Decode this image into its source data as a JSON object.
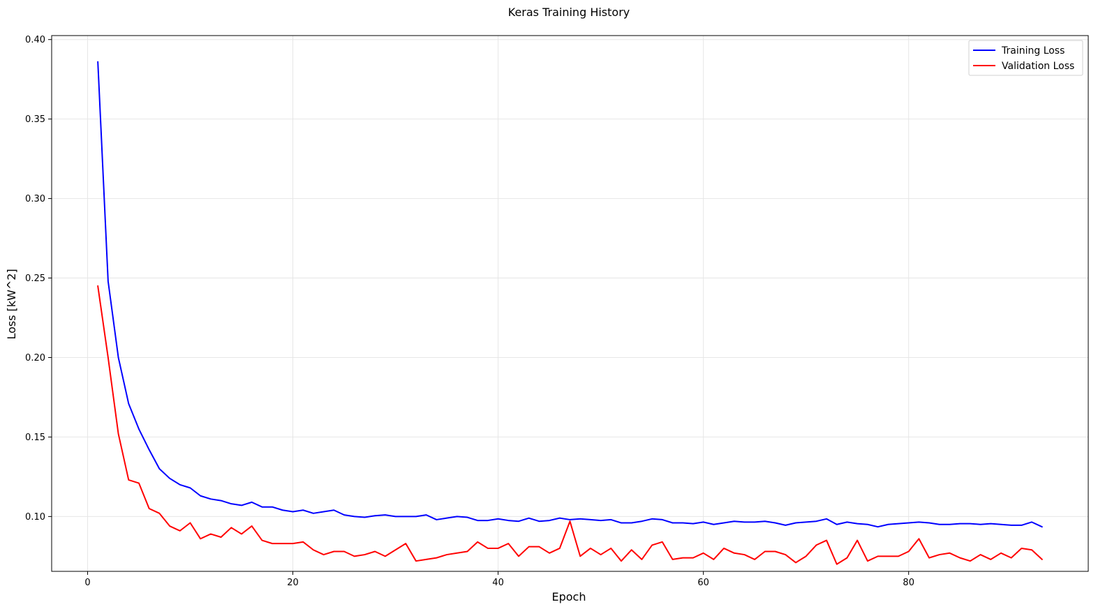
{
  "chart_data": {
    "type": "line",
    "title": "Keras Training History",
    "xlabel": "Epoch",
    "ylabel": "Loss [kW^2]",
    "xlim": [
      -3.5,
      97.5
    ],
    "ylim": [
      0.0655,
      0.4025
    ],
    "xticks": [
      0,
      20,
      40,
      60,
      80
    ],
    "yticks": [
      0.1,
      0.15,
      0.2,
      0.25,
      0.3,
      0.35,
      0.4
    ],
    "ytick_labels": [
      "0.10",
      "0.15",
      "0.20",
      "0.25",
      "0.30",
      "0.35",
      "0.40"
    ],
    "grid": true,
    "legend_position": "top-right",
    "x": [
      1,
      2,
      3,
      4,
      5,
      6,
      7,
      8,
      9,
      10,
      11,
      12,
      13,
      14,
      15,
      16,
      17,
      18,
      19,
      20,
      21,
      22,
      23,
      24,
      25,
      26,
      27,
      28,
      29,
      30,
      31,
      32,
      33,
      34,
      35,
      36,
      37,
      38,
      39,
      40,
      41,
      42,
      43,
      44,
      45,
      46,
      47,
      48,
      49,
      50,
      51,
      52,
      53,
      54,
      55,
      56,
      57,
      58,
      59,
      60,
      61,
      62,
      63,
      64,
      65,
      66,
      67,
      68,
      69,
      70,
      71,
      72,
      73,
      74,
      75,
      76,
      77,
      78,
      79,
      80,
      81,
      82,
      83,
      84,
      85,
      86,
      87,
      88,
      89,
      90,
      91,
      92,
      93
    ],
    "series": [
      {
        "name": "Training Loss",
        "color": "#0000ff",
        "values": [
          0.386,
          0.248,
          0.2,
          0.171,
          0.155,
          0.142,
          0.13,
          0.124,
          0.12,
          0.118,
          0.113,
          0.111,
          0.11,
          0.108,
          0.107,
          0.109,
          0.106,
          0.106,
          0.104,
          0.103,
          0.104,
          0.102,
          0.103,
          0.104,
          0.101,
          0.1,
          0.0995,
          0.1005,
          0.101,
          0.1,
          0.1,
          0.1,
          0.101,
          0.098,
          0.099,
          0.1,
          0.0995,
          0.0975,
          0.0975,
          0.0985,
          0.0975,
          0.097,
          0.099,
          0.097,
          0.0975,
          0.099,
          0.098,
          0.0985,
          0.098,
          0.0975,
          0.098,
          0.096,
          0.096,
          0.097,
          0.0985,
          0.098,
          0.096,
          0.096,
          0.0955,
          0.0965,
          0.095,
          0.096,
          0.097,
          0.0965,
          0.0965,
          0.097,
          0.096,
          0.0945,
          0.096,
          0.0965,
          0.097,
          0.0985,
          0.095,
          0.0965,
          0.0955,
          0.095,
          0.0935,
          0.095,
          0.0955,
          0.096,
          0.0965,
          0.096,
          0.095,
          0.095,
          0.0955,
          0.0955,
          0.095,
          0.0955,
          0.095,
          0.0945,
          0.0945,
          0.0965,
          0.0935
        ]
      },
      {
        "name": "Validation Loss",
        "color": "#ff0000",
        "values": [
          0.245,
          0.2,
          0.152,
          0.123,
          0.121,
          0.105,
          0.102,
          0.094,
          0.091,
          0.096,
          0.086,
          0.089,
          0.087,
          0.093,
          0.089,
          0.094,
          0.085,
          0.083,
          0.083,
          0.083,
          0.084,
          0.079,
          0.076,
          0.078,
          0.078,
          0.075,
          0.076,
          0.078,
          0.075,
          0.079,
          0.083,
          0.072,
          0.073,
          0.074,
          0.076,
          0.077,
          0.078,
          0.084,
          0.08,
          0.08,
          0.083,
          0.075,
          0.081,
          0.081,
          0.077,
          0.08,
          0.097,
          0.075,
          0.08,
          0.076,
          0.08,
          0.072,
          0.079,
          0.073,
          0.082,
          0.084,
          0.073,
          0.074,
          0.074,
          0.077,
          0.073,
          0.08,
          0.077,
          0.076,
          0.073,
          0.078,
          0.078,
          0.076,
          0.071,
          0.075,
          0.082,
          0.085,
          0.07,
          0.074,
          0.085,
          0.072,
          0.075,
          0.075,
          0.075,
          0.078,
          0.086,
          0.074,
          0.076,
          0.077,
          0.074,
          0.072,
          0.076,
          0.073,
          0.077,
          0.074,
          0.08,
          0.079,
          0.073
        ]
      }
    ]
  }
}
